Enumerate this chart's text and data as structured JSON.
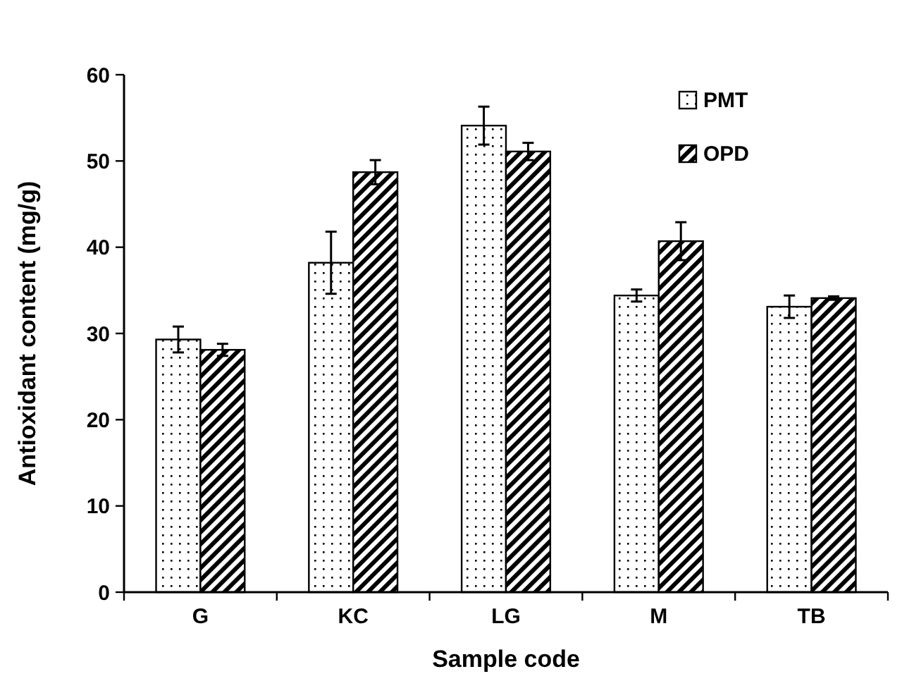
{
  "chart_data": {
    "type": "bar",
    "xlabel": "Sample code",
    "ylabel": "Antioxidant content (mg/g)",
    "categories": [
      "G",
      "KC",
      "LG",
      "M",
      "TB"
    ],
    "ylim": [
      0,
      60
    ],
    "yticks": [
      0,
      10,
      20,
      30,
      40,
      50,
      60
    ],
    "grid": false,
    "legend": "top right",
    "series": [
      {
        "name": "PMT",
        "color": "#000000",
        "values": [
          29.3,
          38.2,
          54.1,
          34.4,
          33.1
        ],
        "errors": [
          1.5,
          3.6,
          2.2,
          0.7,
          1.3
        ]
      },
      {
        "name": "OPD",
        "color": "#000000",
        "values": [
          28.1,
          48.7,
          51.1,
          40.7,
          34.1
        ],
        "errors": [
          0.7,
          1.4,
          1.0,
          2.2,
          0.2
        ]
      }
    ]
  }
}
